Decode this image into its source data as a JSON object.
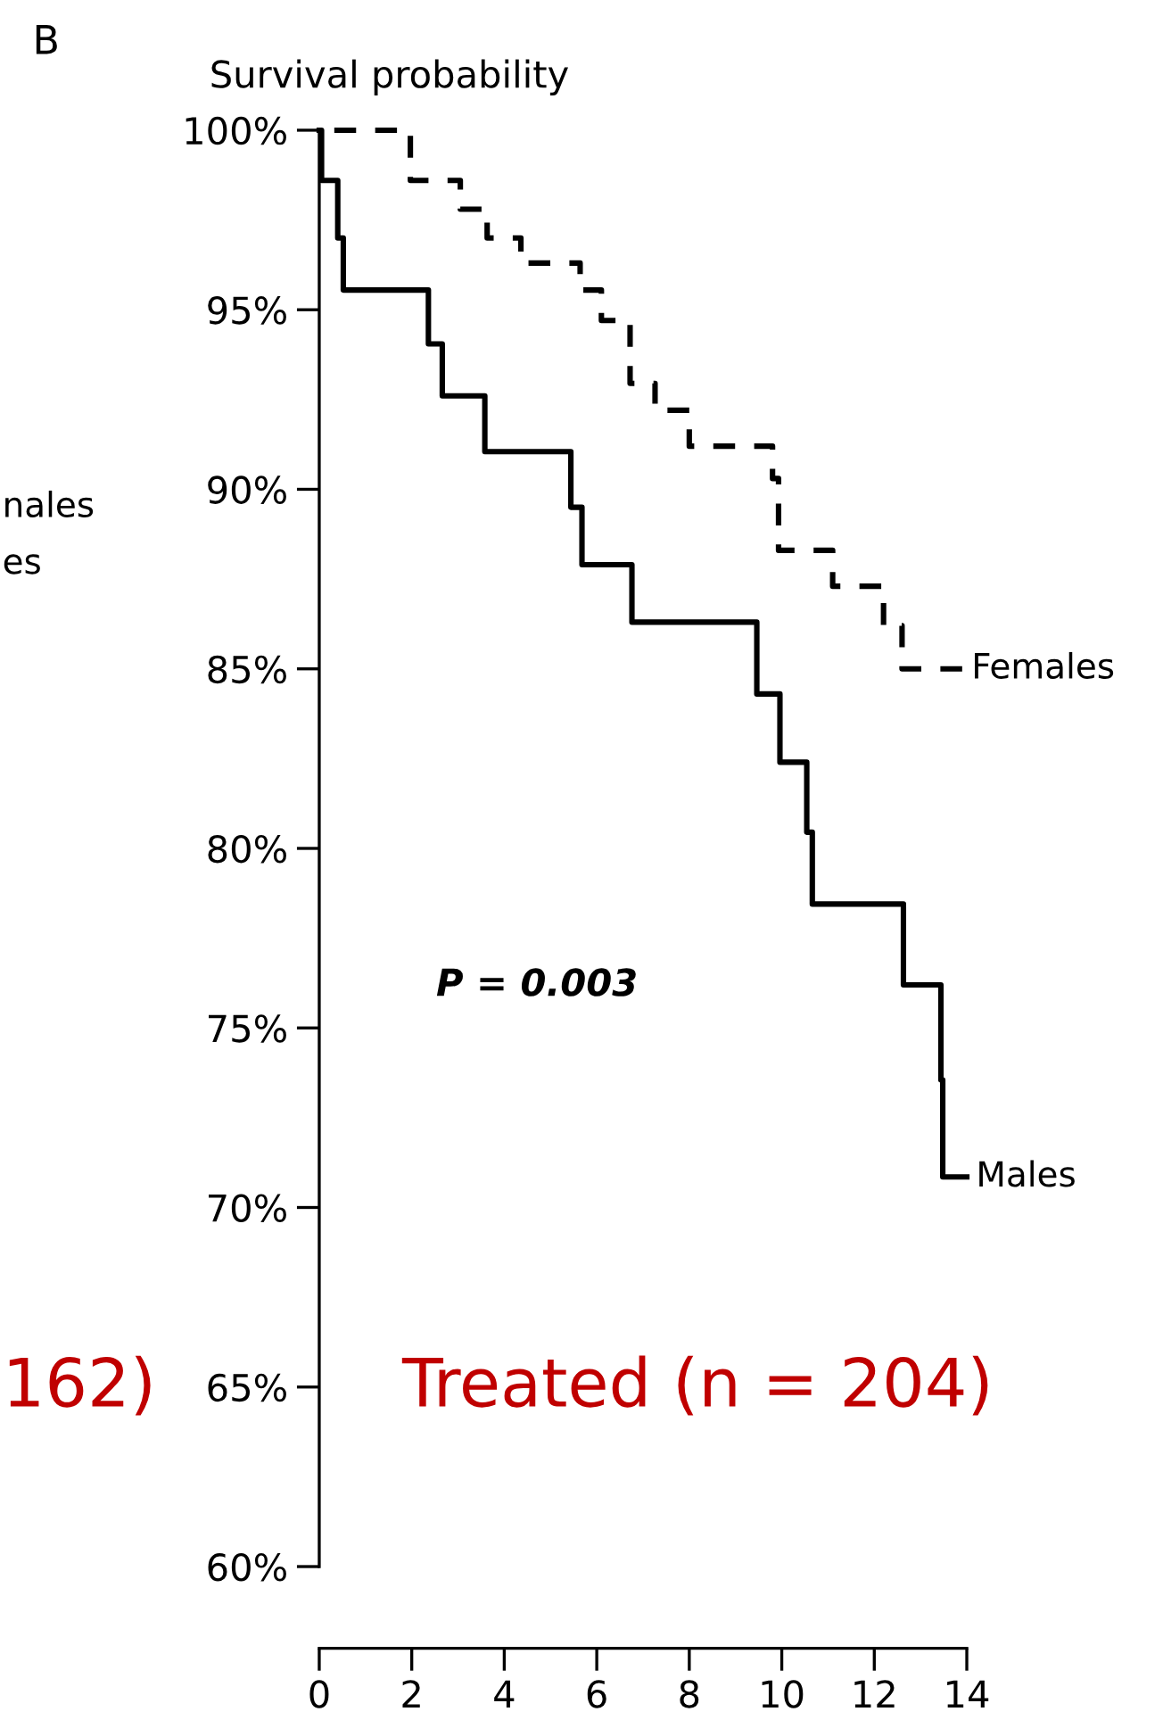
{
  "chart_data": {
    "type": "step",
    "title": "B",
    "ylabel": "Survival probability",
    "xlim": [
      0,
      14
    ],
    "ylim": [
      60,
      100
    ],
    "xticks": [
      0,
      2,
      4,
      6,
      8,
      10,
      12,
      14
    ],
    "yticks": [
      {
        "value": 60,
        "label": "60%"
      },
      {
        "value": 65,
        "label": "65%"
      },
      {
        "value": 70,
        "label": "70%"
      },
      {
        "value": 75,
        "label": "75%"
      },
      {
        "value": 80,
        "label": "80%"
      },
      {
        "value": 85,
        "label": "85%"
      },
      {
        "value": 90,
        "label": "90%"
      },
      {
        "value": 95,
        "label": "95%"
      },
      {
        "value": 100,
        "label": "100%"
      }
    ],
    "grid": false,
    "legend": false,
    "series": [
      {
        "name": "Females",
        "color": "#000000",
        "line_style": "dashed",
        "x": [
          0,
          1.97,
          3.05,
          3.63,
          4.36,
          5.64,
          6.1,
          6.72,
          7.26,
          8.0,
          9.8,
          9.93,
          11.1,
          12.2,
          12.6,
          13.9
        ],
        "values": [
          100,
          98.6,
          97.8,
          97.0,
          96.3,
          95.55,
          94.7,
          92.95,
          92.2,
          91.2,
          90.3,
          88.3,
          87.3,
          86.2,
          85.0,
          85.0
        ]
      },
      {
        "name": "Males",
        "color": "#000000",
        "line_style": "solid",
        "x": [
          0,
          0.05,
          0.4,
          0.52,
          2.36,
          2.66,
          3.58,
          5.44,
          5.68,
          6.76,
          9.46,
          9.96,
          10.54,
          10.66,
          12.63,
          13.44,
          13.48,
          14.0
        ],
        "values": [
          100,
          98.6,
          97.0,
          95.55,
          94.05,
          92.6,
          91.05,
          89.5,
          87.9,
          86.3,
          84.3,
          82.4,
          80.45,
          78.45,
          76.2,
          73.55,
          70.85,
          70.85
        ]
      }
    ],
    "annotations": [
      "P = 0.003",
      "Treated (n = 204)",
      "nales",
      "es",
      "162)"
    ]
  }
}
